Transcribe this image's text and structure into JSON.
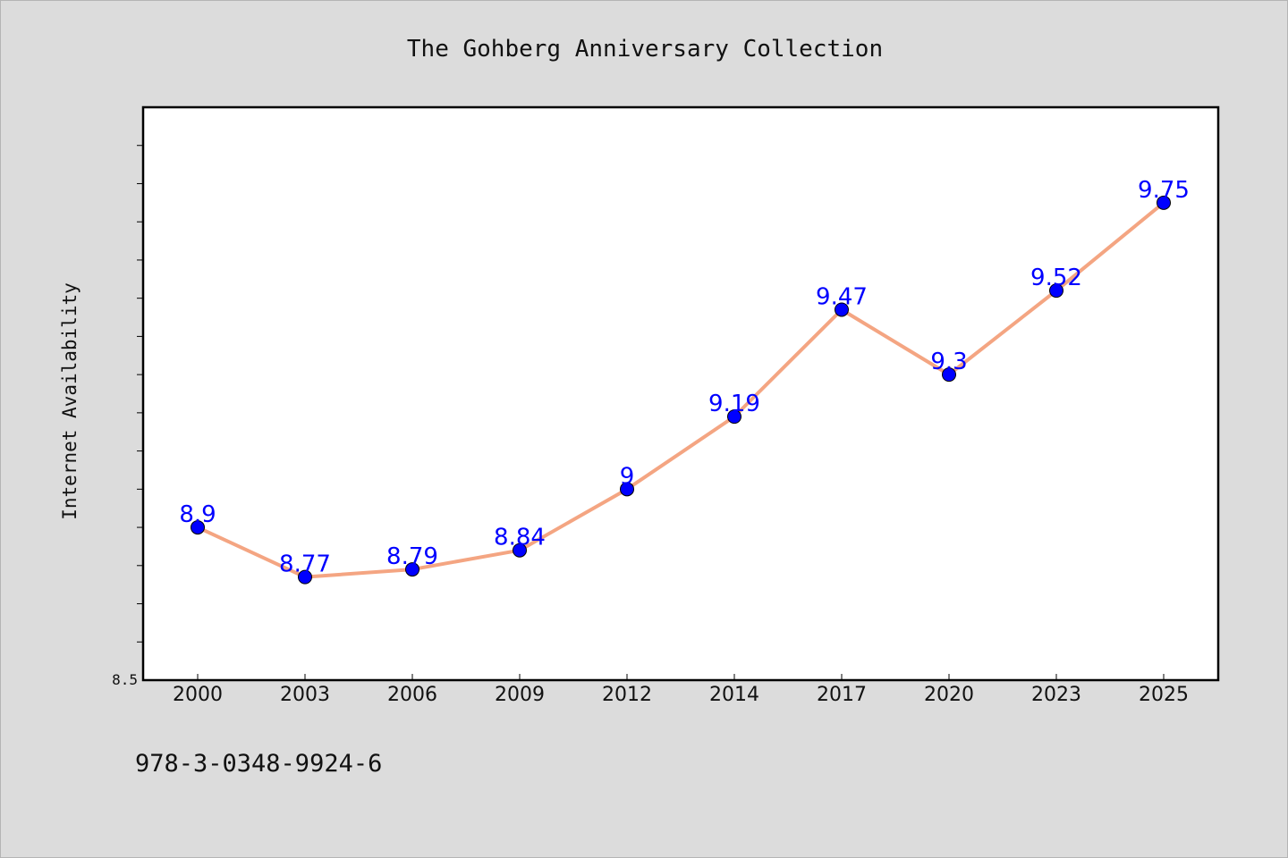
{
  "chart_data": {
    "type": "line",
    "title": "The Gohberg Anniversary Collection",
    "xlabel": "",
    "ylabel": "Internet Availability",
    "categories": [
      "2000",
      "2003",
      "2006",
      "2009",
      "2012",
      "2014",
      "2017",
      "2020",
      "2023",
      "2025"
    ],
    "series": [
      {
        "values": [
          8.9,
          8.77,
          8.79,
          8.84,
          9.0,
          9.19,
          9.47,
          9.3,
          9.52,
          9.75
        ]
      }
    ],
    "data_labels": [
      "8.9",
      "8.77",
      "8.79",
      "8.84",
      "9",
      "9.19",
      "9.47",
      "9.3",
      "9.52",
      "9.75"
    ],
    "ylim": [
      8.5,
      10.0
    ],
    "y_tick_labels": [
      "8.5"
    ],
    "y_minor_tick_step": 0.1,
    "grid": false,
    "legend": "none",
    "line_color": "#f4a582",
    "marker_color": "#0000ff",
    "label_color": "#0000ff"
  },
  "footer": {
    "isbn": "978-3-0348-9924-6"
  }
}
